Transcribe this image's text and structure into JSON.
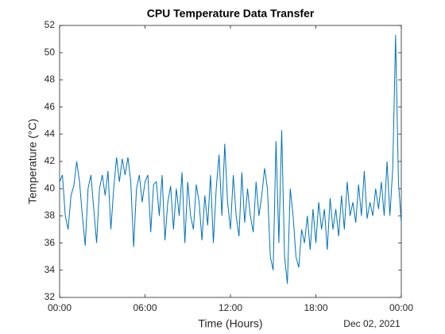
{
  "chart_data": {
    "type": "line",
    "title": "CPU Temperature Data Transfer",
    "x_label": "Time (Hours)",
    "y_label": "Temperature (°C)",
    "date_label": "Dec 02, 2021",
    "xlim": [
      0,
      24
    ],
    "xticks": [
      {
        "value": 0,
        "label": "00:00"
      },
      {
        "value": 6,
        "label": "06:00"
      },
      {
        "value": 12,
        "label": "12:00"
      },
      {
        "value": 18,
        "label": "18:00"
      },
      {
        "value": 24,
        "label": "00:00"
      }
    ],
    "ylim": [
      32,
      52
    ],
    "yticks": [
      32,
      34,
      36,
      38,
      40,
      42,
      44,
      46,
      48,
      50,
      52
    ],
    "x": [
      0,
      0.2,
      0.4,
      0.6,
      0.8,
      1,
      1.2,
      1.4,
      1.6,
      1.8,
      2,
      2.2,
      2.4,
      2.6,
      2.8,
      3,
      3.2,
      3.4,
      3.6,
      3.8,
      4,
      4.2,
      4.4,
      4.6,
      4.8,
      5,
      5.2,
      5.4,
      5.6,
      5.8,
      6,
      6.2,
      6.4,
      6.6,
      6.8,
      7,
      7.2,
      7.4,
      7.6,
      7.8,
      8,
      8.2,
      8.4,
      8.6,
      8.8,
      9,
      9.2,
      9.4,
      9.6,
      9.8,
      10,
      10.2,
      10.4,
      10.6,
      10.8,
      11,
      11.2,
      11.4,
      11.6,
      11.8,
      12,
      12.2,
      12.4,
      12.6,
      12.8,
      13,
      13.2,
      13.4,
      13.6,
      13.8,
      14,
      14.2,
      14.4,
      14.6,
      14.8,
      15,
      15.2,
      15.4,
      15.6,
      15.8,
      16,
      16.2,
      16.4,
      16.6,
      16.8,
      17,
      17.2,
      17.4,
      17.6,
      17.8,
      18,
      18.2,
      18.4,
      18.6,
      18.8,
      19,
      19.2,
      19.4,
      19.6,
      19.8,
      20,
      20.2,
      20.4,
      20.6,
      20.8,
      21,
      21.2,
      21.4,
      21.6,
      21.8,
      22,
      22.2,
      22.4,
      22.6,
      22.8,
      23,
      23.2,
      23.4,
      23.6,
      23.8,
      24
    ],
    "series": [
      {
        "name": "CPU Temperature",
        "color": "#0072bd",
        "values": [
          40.5,
          41,
          38,
          37,
          39.5,
          40.2,
          42,
          40.5,
          38,
          35.8,
          40,
          41,
          38.5,
          36,
          40,
          41,
          39.5,
          41.3,
          37,
          40,
          42.3,
          40.5,
          42.2,
          41,
          42.3,
          40.5,
          35.7,
          40,
          41,
          39,
          40.5,
          41,
          36.8,
          40.3,
          40.5,
          38,
          41,
          36.2,
          39,
          40.2,
          37,
          40,
          38,
          41.2,
          36,
          40.5,
          38,
          37,
          40.3,
          39,
          36.2,
          39.5,
          37.3,
          41,
          36,
          40,
          42.5,
          38,
          43.3,
          39,
          37,
          41,
          38,
          36.5,
          41.2,
          37.5,
          40,
          38,
          36.8,
          40.5,
          38,
          39.5,
          41.5,
          40,
          35,
          34,
          43.5,
          36,
          44.3,
          35,
          33,
          40,
          38,
          35,
          34.2,
          37,
          36,
          38,
          35.5,
          38.5,
          36,
          39,
          37,
          38.5,
          35.5,
          39.3,
          37,
          38.5,
          36.5,
          39.5,
          37,
          40.5,
          38,
          39,
          37.5,
          40.3,
          38,
          41.3,
          37.8,
          39,
          38,
          40,
          38.5,
          40.5,
          38,
          42,
          38,
          41.5,
          51.3,
          40.5,
          37.5
        ]
      }
    ],
    "grid": false
  }
}
